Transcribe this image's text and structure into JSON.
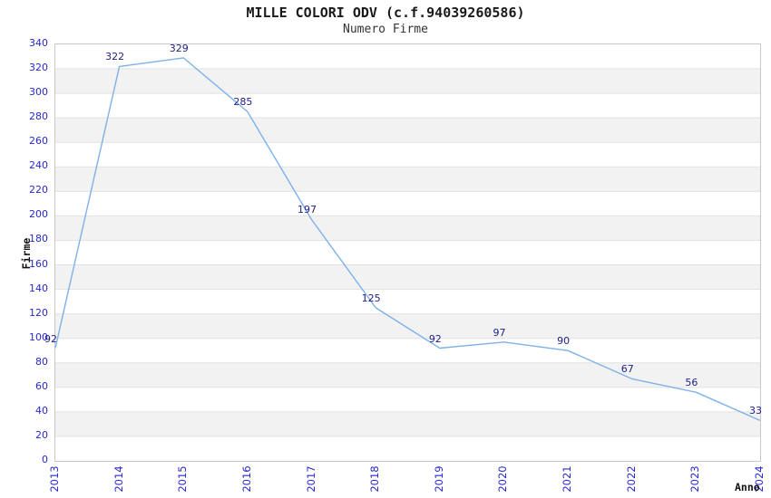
{
  "chart_data": {
    "type": "line",
    "title": "MILLE COLORI ODV (c.f.94039260586)",
    "subtitle": "Numero Firme",
    "xlabel": "Anno",
    "ylabel": "Firme",
    "categories": [
      "2013",
      "2014",
      "2015",
      "2016",
      "2017",
      "2018",
      "2019",
      "2020",
      "2021",
      "2022",
      "2023",
      "2024"
    ],
    "values": [
      92,
      322,
      329,
      285,
      197,
      125,
      92,
      97,
      90,
      67,
      56,
      33
    ],
    "ylim": [
      0,
      340
    ],
    "ytick_step": 20,
    "ytick_labels": [
      "0",
      "20",
      "40",
      "60",
      "80",
      "100",
      "120",
      "140",
      "160",
      "180",
      "200",
      "220",
      "240",
      "260",
      "280",
      "300",
      "320",
      "340"
    ],
    "grid": true,
    "banded_background": true,
    "legend": "none",
    "data_labels_shown": true,
    "colors": {
      "line": "#7db1e8",
      "tick_label": "#2828d0",
      "data_label": "#1e1e88",
      "band": "#f2f2f2",
      "gridline": "#e2e2e2",
      "plot_border": "#c8c8c8",
      "title_text": "#1a1a1a",
      "axis_title_text": "#111111",
      "background": "#ffffff"
    }
  }
}
